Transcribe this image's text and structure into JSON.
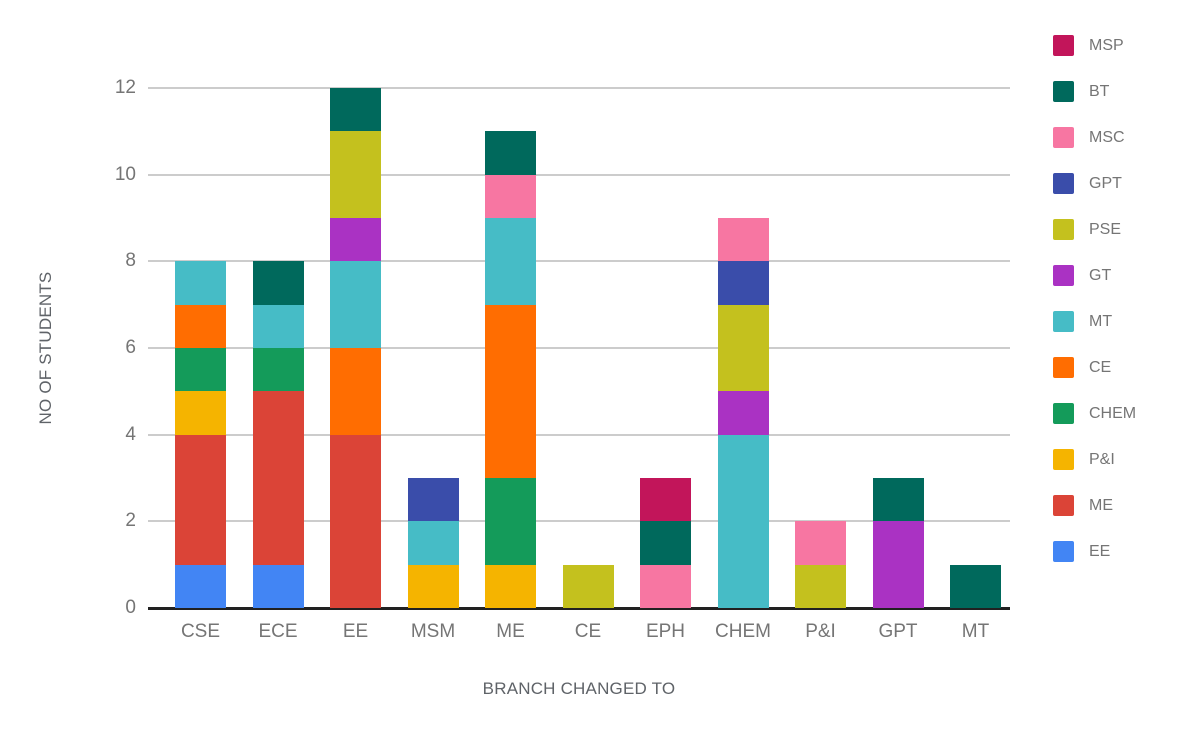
{
  "chart_data": {
    "type": "bar",
    "stacked": true,
    "title": "",
    "xlabel": "BRANCH CHANGED TO",
    "ylabel": "NO OF STUDENTS",
    "ylim": [
      0,
      12
    ],
    "yticks": [
      0,
      2,
      4,
      6,
      8,
      10,
      12
    ],
    "grid": true,
    "legend_position": "right",
    "categories": [
      "CSE",
      "ECE",
      "EE",
      "MSM",
      "ME",
      "CE",
      "EPH",
      "CHEM",
      "P&I",
      "GPT",
      "MT"
    ],
    "category_totals": [
      8,
      8,
      12,
      3,
      11,
      1,
      3,
      9,
      2,
      3,
      1
    ],
    "stack_order": "bottom_to_top",
    "series": [
      {
        "name": "EE",
        "color": "#4285F4",
        "values": [
          1,
          1,
          0,
          0,
          0,
          0,
          0,
          0,
          0,
          0,
          0
        ]
      },
      {
        "name": "ME",
        "color": "#DB4437",
        "values": [
          3,
          4,
          4,
          0,
          0,
          0,
          0,
          0,
          0,
          0,
          0
        ]
      },
      {
        "name": "P&I",
        "color": "#F5B400",
        "values": [
          1,
          0,
          0,
          1,
          1,
          0,
          0,
          0,
          0,
          0,
          0
        ]
      },
      {
        "name": "CHEM",
        "color": "#149B5A",
        "values": [
          1,
          1,
          0,
          0,
          2,
          0,
          0,
          0,
          0,
          0,
          0
        ]
      },
      {
        "name": "CE",
        "color": "#FF6D01",
        "values": [
          1,
          0,
          2,
          0,
          4,
          0,
          0,
          0,
          0,
          0,
          0
        ]
      },
      {
        "name": "MT",
        "color": "#46BCC6",
        "values": [
          1,
          1,
          2,
          1,
          2,
          0,
          0,
          4,
          0,
          0,
          0
        ]
      },
      {
        "name": "GT",
        "color": "#AA32C3",
        "values": [
          0,
          0,
          1,
          0,
          0,
          0,
          0,
          1,
          0,
          2,
          0
        ]
      },
      {
        "name": "PSE",
        "color": "#C4C11E",
        "values": [
          0,
          0,
          2,
          0,
          0,
          1,
          0,
          2,
          1,
          0,
          0
        ]
      },
      {
        "name": "GPT",
        "color": "#3A4DAA",
        "values": [
          0,
          0,
          0,
          1,
          0,
          0,
          0,
          1,
          0,
          0,
          0
        ]
      },
      {
        "name": "MSC",
        "color": "#F776A2",
        "values": [
          0,
          0,
          0,
          0,
          1,
          0,
          1,
          1,
          1,
          0,
          0
        ]
      },
      {
        "name": "BT",
        "color": "#00695C",
        "values": [
          0,
          1,
          1,
          0,
          1,
          0,
          1,
          0,
          0,
          1,
          1
        ]
      },
      {
        "name": "MSP",
        "color": "#C2155A",
        "values": [
          0,
          0,
          0,
          0,
          0,
          0,
          1,
          0,
          0,
          0,
          0
        ]
      }
    ],
    "legend_order": [
      "MSP",
      "BT",
      "MSC",
      "GPT",
      "PSE",
      "GT",
      "MT",
      "CE",
      "CHEM",
      "P&I",
      "ME",
      "EE"
    ],
    "gridline_color": "#CCCCCC",
    "axis_line_color": "#212121",
    "tick_label_color": "#757575",
    "axis_title_color": "#5F6368"
  }
}
